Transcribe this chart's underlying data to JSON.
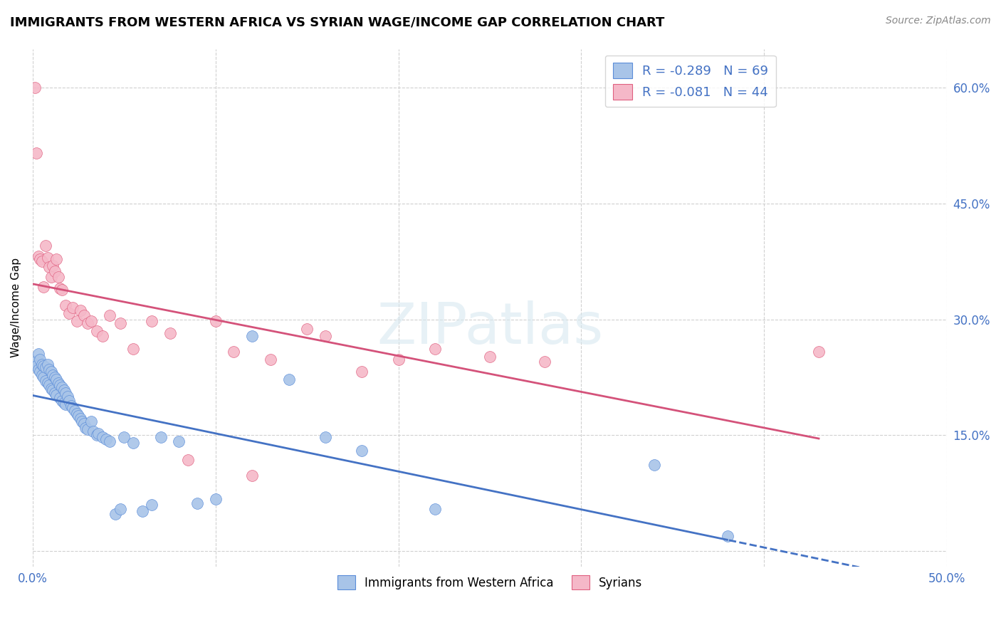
{
  "title": "IMMIGRANTS FROM WESTERN AFRICA VS SYRIAN WAGE/INCOME GAP CORRELATION CHART",
  "source": "Source: ZipAtlas.com",
  "ylabel": "Wage/Income Gap",
  "xlim": [
    0.0,
    0.5
  ],
  "ylim": [
    -0.02,
    0.65
  ],
  "ytick_positions": [
    0.0,
    0.15,
    0.3,
    0.45,
    0.6
  ],
  "ytick_labels": [
    "",
    "15.0%",
    "30.0%",
    "45.0%",
    "60.0%"
  ],
  "blue_scatter_color": "#a8c4e8",
  "blue_edge_color": "#5b8dd9",
  "pink_scatter_color": "#f5b8c8",
  "pink_edge_color": "#e06080",
  "blue_line_color": "#4472c4",
  "pink_line_color": "#d4527a",
  "R_blue": -0.289,
  "N_blue": 69,
  "R_pink": -0.081,
  "N_pink": 44,
  "watermark": "ZIPatlas",
  "blue_x": [
    0.001,
    0.002,
    0.003,
    0.003,
    0.004,
    0.004,
    0.005,
    0.005,
    0.006,
    0.006,
    0.007,
    0.007,
    0.008,
    0.008,
    0.009,
    0.009,
    0.01,
    0.01,
    0.011,
    0.011,
    0.012,
    0.012,
    0.013,
    0.013,
    0.014,
    0.015,
    0.015,
    0.016,
    0.016,
    0.017,
    0.017,
    0.018,
    0.018,
    0.019,
    0.02,
    0.021,
    0.022,
    0.023,
    0.024,
    0.025,
    0.026,
    0.027,
    0.028,
    0.029,
    0.03,
    0.032,
    0.033,
    0.035,
    0.036,
    0.038,
    0.04,
    0.042,
    0.045,
    0.048,
    0.05,
    0.055,
    0.06,
    0.065,
    0.07,
    0.08,
    0.09,
    0.1,
    0.12,
    0.14,
    0.16,
    0.18,
    0.22,
    0.34,
    0.38
  ],
  "blue_y": [
    0.245,
    0.24,
    0.255,
    0.235,
    0.248,
    0.232,
    0.242,
    0.228,
    0.24,
    0.225,
    0.238,
    0.22,
    0.242,
    0.218,
    0.235,
    0.215,
    0.232,
    0.21,
    0.228,
    0.208,
    0.225,
    0.205,
    0.222,
    0.202,
    0.218,
    0.215,
    0.198,
    0.212,
    0.195,
    0.208,
    0.192,
    0.205,
    0.19,
    0.2,
    0.195,
    0.188,
    0.185,
    0.182,
    0.178,
    0.175,
    0.172,
    0.168,
    0.165,
    0.16,
    0.158,
    0.168,
    0.155,
    0.15,
    0.152,
    0.148,
    0.145,
    0.142,
    0.048,
    0.055,
    0.148,
    0.14,
    0.052,
    0.06,
    0.148,
    0.142,
    0.062,
    0.068,
    0.278,
    0.222,
    0.148,
    0.13,
    0.055,
    0.112,
    0.02
  ],
  "pink_x": [
    0.001,
    0.002,
    0.003,
    0.004,
    0.005,
    0.006,
    0.007,
    0.008,
    0.009,
    0.01,
    0.011,
    0.012,
    0.013,
    0.014,
    0.015,
    0.016,
    0.018,
    0.02,
    0.022,
    0.024,
    0.026,
    0.028,
    0.03,
    0.032,
    0.035,
    0.038,
    0.042,
    0.048,
    0.055,
    0.065,
    0.075,
    0.085,
    0.1,
    0.11,
    0.12,
    0.13,
    0.15,
    0.16,
    0.18,
    0.2,
    0.22,
    0.25,
    0.28,
    0.43
  ],
  "pink_y": [
    0.6,
    0.515,
    0.382,
    0.378,
    0.375,
    0.342,
    0.395,
    0.38,
    0.368,
    0.355,
    0.37,
    0.362,
    0.378,
    0.355,
    0.34,
    0.338,
    0.318,
    0.308,
    0.315,
    0.298,
    0.312,
    0.305,
    0.295,
    0.298,
    0.285,
    0.278,
    0.305,
    0.295,
    0.262,
    0.298,
    0.282,
    0.118,
    0.298,
    0.258,
    0.098,
    0.248,
    0.288,
    0.278,
    0.232,
    0.248,
    0.262,
    0.252,
    0.245,
    0.258
  ]
}
